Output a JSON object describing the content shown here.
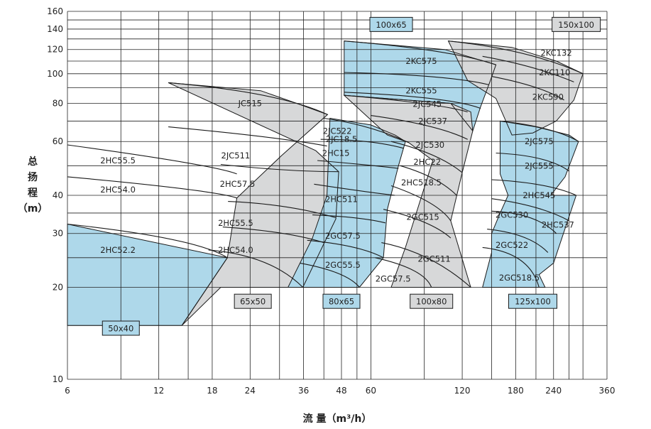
{
  "chart_data": {
    "type": "area",
    "xlabel": "流 量（m³/h）",
    "ylabel": [
      "总",
      "扬",
      "程",
      "（m）"
    ],
    "x_scale": "log",
    "y_scale": "log",
    "xlim": [
      6,
      360
    ],
    "ylim": [
      10,
      160
    ],
    "x_ticks": [
      6,
      12,
      18,
      24,
      36,
      48,
      60,
      120,
      180,
      240,
      360
    ],
    "y_ticks": [
      10,
      20,
      30,
      40,
      60,
      80,
      100,
      120,
      140,
      160
    ],
    "x_grid": [
      6,
      9,
      12,
      15,
      18,
      24,
      30,
      36,
      42,
      48,
      54,
      60,
      90,
      120,
      150,
      180,
      210,
      240,
      270,
      300,
      360
    ],
    "y_grid": [
      10,
      15,
      20,
      25,
      30,
      35,
      40,
      50,
      60,
      70,
      80,
      90,
      100,
      110,
      120,
      130,
      140,
      150,
      160
    ],
    "colors": {
      "blue": "#aed8ea",
      "gray": "#d7d8d9",
      "outline": "#1a1a1a",
      "grid": "#222222"
    },
    "regions": [
      {
        "size": "50x40",
        "fill": "blue",
        "polygon": [
          [
            6,
            15
          ],
          [
            14.3,
            15
          ],
          [
            20.2,
            25
          ],
          [
            6,
            32.2
          ]
        ],
        "curves": [
          {
            "x1": 6,
            "y1": 58.5,
            "x2": 18.5,
            "y2": 50.2,
            "end": [
              21.7,
              47
            ]
          },
          {
            "x1": 6,
            "y1": 46,
            "x2": 18.5,
            "y2": 41.5,
            "end": [
              21.7,
              39.2
            ]
          },
          {
            "x1": 6,
            "y1": 32.2,
            "x2": 16,
            "y2": 29,
            "end": [
              20.2,
              25
            ]
          }
        ],
        "models": [
          {
            "name": "2HC55.5",
            "x": 8.8,
            "y": 52
          },
          {
            "name": "2HC54.0",
            "x": 8.8,
            "y": 41.8
          },
          {
            "name": "2HC52.2",
            "x": 8.8,
            "y": 26.5
          }
        ]
      },
      {
        "size": "65x50",
        "fill": "gray",
        "polygon": [
          [
            12.9,
            93.5
          ],
          [
            26,
            88
          ],
          [
            33,
            81
          ],
          [
            43.2,
            73.5
          ],
          [
            30.5,
            54
          ],
          [
            21.7,
            39.2
          ],
          [
            20.2,
            25
          ],
          [
            14.3,
            15
          ],
          [
            19.2,
            20
          ],
          [
            35.8,
            20
          ],
          [
            46,
            33.5
          ],
          [
            47,
            47.8
          ],
          [
            39.5,
            56
          ]
        ],
        "curves": [
          {
            "x1": 12.9,
            "y1": 93.5,
            "x2": 30,
            "y2": 87,
            "end": [
              43.2,
              73.5
            ]
          },
          {
            "x1": 12.9,
            "y1": 67,
            "x2": 30,
            "y2": 62,
            "end": [
              43,
              58
            ]
          },
          {
            "x1": 19.2,
            "y1": 50.5,
            "x2": 32,
            "y2": 47.8,
            "end": [
              47,
              47.8
            ]
          },
          {
            "x1": 20.3,
            "y1": 38.2,
            "x2": 32,
            "y2": 37.5,
            "end": [
              46,
              33.8
            ]
          },
          {
            "x1": 19.5,
            "y1": 31.5,
            "x2": 32,
            "y2": 30.5,
            "end": [
              42,
              28
            ]
          },
          {
            "x1": 17.5,
            "y1": 26.5,
            "x2": 28,
            "y2": 25.5,
            "end": [
              35.8,
              20
            ]
          }
        ],
        "models": [
          {
            "name": "JC515",
            "x": 24,
            "y": 80
          },
          {
            "name": "2JC511",
            "x": 21.5,
            "y": 54
          },
          {
            "name": "2HC57.5",
            "x": 21.8,
            "y": 43.6
          },
          {
            "name": "2HC55.5",
            "x": 21.5,
            "y": 32.5
          },
          {
            "name": "2HC54.0",
            "x": 21.5,
            "y": 26.5
          }
        ]
      },
      {
        "size": "80x65",
        "fill": "blue",
        "polygon": [
          [
            44,
            71.5
          ],
          [
            60,
            68
          ],
          [
            72,
            63
          ],
          [
            78,
            60
          ],
          [
            74,
            50
          ],
          [
            68,
            36
          ],
          [
            66,
            25
          ],
          [
            55,
            20
          ],
          [
            32,
            20
          ],
          [
            38.5,
            29
          ],
          [
            43,
            40
          ]
        ],
        "curves": [
          {
            "x1": 42,
            "y1": 71.5,
            "x2": 60,
            "y2": 68,
            "end": [
              80,
              59.5
            ]
          },
          {
            "x1": 41,
            "y1": 61,
            "x2": 60,
            "y2": 61,
            "end": [
              77,
              57
            ]
          },
          {
            "x1": 40,
            "y1": 52,
            "x2": 57,
            "y2": 50.5,
            "end": [
              74,
              49
            ]
          },
          {
            "x1": 39,
            "y1": 43.5,
            "x2": 58,
            "y2": 41,
            "end": [
              72,
              40
            ]
          },
          {
            "x1": 38.5,
            "y1": 34.5,
            "x2": 56,
            "y2": 34,
            "end": [
              67,
              32.5
            ]
          },
          {
            "x1": 37,
            "y1": 28.5,
            "x2": 55,
            "y2": 27.5,
            "end": [
              66,
              25
            ]
          },
          {
            "x1": 35,
            "y1": 24,
            "x2": 50,
            "y2": 22.5,
            "end": [
              55,
              20
            ]
          }
        ],
        "models": [
          {
            "name": "2JC522",
            "x": 46.5,
            "y": 65
          },
          {
            "name": "2JC18.5",
            "x": 48,
            "y": 61
          },
          {
            "name": "2HC15",
            "x": 46,
            "y": 55
          },
          {
            "name": "2HC511",
            "x": 48,
            "y": 38.8
          },
          {
            "name": "2GC57.5",
            "x": 48.5,
            "y": 29.5
          },
          {
            "name": "2GC55.5",
            "x": 48.5,
            "y": 23.7
          }
        ]
      },
      {
        "size": "100x65",
        "fill": "blue",
        "polygon": [
          [
            49,
            128
          ],
          [
            105,
            120
          ],
          [
            155,
            107
          ],
          [
            148,
            94
          ],
          [
            138,
            78
          ],
          [
            130,
            65
          ],
          [
            110,
            80
          ],
          [
            49,
            85
          ]
        ],
        "curves": [
          {
            "x1": 49,
            "y1": 128,
            "x2": 110,
            "y2": 120,
            "end": [
              155,
              107
            ]
          },
          {
            "x1": 49,
            "y1": 101,
            "x2": 110,
            "y2": 99,
            "end": [
              147,
              92
            ]
          },
          {
            "x1": 49,
            "y1": 87,
            "x2": 110,
            "y2": 84,
            "end": [
              138,
              77
            ]
          }
        ],
        "models": [
          {
            "name": "2KC575",
            "x": 88,
            "y": 110
          },
          {
            "name": "2KC555",
            "x": 88,
            "y": 88
          }
        ]
      },
      {
        "size": "100x80",
        "fill": "gray",
        "polygon": [
          [
            49,
            85
          ],
          [
            110,
            80
          ],
          [
            128,
            75
          ],
          [
            130,
            65
          ],
          [
            120,
            47.5
          ],
          [
            110,
            33
          ],
          [
            128,
            20
          ],
          [
            70,
            20
          ],
          [
            78,
            27
          ],
          [
            96,
            52
          ],
          [
            80,
            59.5
          ],
          [
            68,
            63
          ]
        ],
        "curves": [
          {
            "x1": 49,
            "y1": 85,
            "x2": 100,
            "y2": 80,
            "end": [
              125,
              75
            ]
          },
          {
            "x1": 60,
            "y1": 73,
            "x2": 100,
            "y2": 68,
            "end": [
              125,
              61
            ]
          },
          {
            "x1": 70,
            "y1": 60,
            "x2": 100,
            "y2": 55,
            "end": [
              120,
              47.5
            ]
          },
          {
            "x1": 75,
            "y1": 50,
            "x2": 100,
            "y2": 46,
            "end": [
              115,
              40
            ]
          },
          {
            "x1": 70,
            "y1": 43,
            "x2": 100,
            "y2": 38,
            "end": [
              110,
              33
            ]
          },
          {
            "x1": 66,
            "y1": 36,
            "x2": 95,
            "y2": 33,
            "end": [
              110,
              29
            ]
          },
          {
            "x1": 65,
            "y1": 28,
            "x2": 95,
            "y2": 26,
            "end": [
              128,
              20
            ]
          },
          {
            "x1": 62,
            "y1": 25,
            "x2": 90,
            "y2": 23,
            "end": [
              95,
              20
            ]
          }
        ],
        "models": [
          {
            "name": "2JC545",
            "x": 92,
            "y": 79.5
          },
          {
            "name": "2JC537",
            "x": 96,
            "y": 70
          },
          {
            "name": "2JC530",
            "x": 94,
            "y": 58.5
          },
          {
            "name": "2HC22",
            "x": 92,
            "y": 51.5
          },
          {
            "name": "2HC518.5",
            "x": 88,
            "y": 44
          },
          {
            "name": "2GC515",
            "x": 89,
            "y": 34
          },
          {
            "name": "2GC511",
            "x": 97,
            "y": 24.8
          },
          {
            "name": "2GC57.5",
            "x": 71,
            "y": 21.3
          }
        ]
      },
      {
        "size": "150x100",
        "fill": "gray",
        "polygon": [
          [
            108,
            128
          ],
          [
            175,
            122
          ],
          [
            245,
            110
          ],
          [
            300,
            100
          ],
          [
            280,
            82
          ],
          [
            245,
            70
          ],
          [
            205,
            64
          ],
          [
            175,
            63
          ],
          [
            155,
            83
          ],
          [
            125,
            95
          ]
        ],
        "curves": [
          {
            "x1": 108,
            "y1": 128,
            "x2": 200,
            "y2": 120,
            "end": [
              300,
              100
            ]
          },
          {
            "x1": 140,
            "y1": 114,
            "x2": 210,
            "y2": 106,
            "end": [
              280,
              94
            ]
          },
          {
            "x1": 150,
            "y1": 98,
            "x2": 220,
            "y2": 91,
            "end": [
              260,
              82
            ]
          }
        ],
        "models": [
          {
            "name": "2KC132",
            "x": 245,
            "y": 117
          },
          {
            "name": "2KC110",
            "x": 242,
            "y": 101
          },
          {
            "name": "2KC590",
            "x": 230,
            "y": 84
          }
        ]
      },
      {
        "size": "125x100",
        "fill": "blue",
        "polygon": [
          [
            160,
            70
          ],
          [
            210,
            67
          ],
          [
            270,
            63
          ],
          [
            290,
            60
          ],
          [
            262,
            46
          ],
          [
            235,
            40
          ],
          [
            285,
            40
          ],
          [
            240,
            24
          ],
          [
            215,
            22
          ],
          [
            225,
            20
          ],
          [
            140,
            20
          ],
          [
            150,
            26
          ],
          [
            150,
            30
          ],
          [
            160,
            35
          ],
          [
            170,
            40
          ],
          [
            160,
            47
          ]
        ],
        "curves": [
          {
            "x1": 160,
            "y1": 70,
            "x2": 240,
            "y2": 67,
            "end": [
              290,
              60
            ]
          },
          {
            "x1": 155,
            "y1": 55,
            "x2": 230,
            "y2": 54,
            "end": [
              270,
              48
            ]
          },
          {
            "x1": 150,
            "y1": 45,
            "x2": 230,
            "y2": 44,
            "end": [
              285,
              40
            ]
          },
          {
            "x1": 150,
            "y1": 39,
            "x2": 220,
            "y2": 37,
            "end": [
              270,
              33
            ]
          },
          {
            "x1": 150,
            "y1": 35.5,
            "x2": 210,
            "y2": 35,
            "end": [
              245,
              30
            ]
          },
          {
            "x1": 145,
            "y1": 31,
            "x2": 200,
            "y2": 30,
            "end": [
              230,
              26
            ]
          },
          {
            "x1": 140,
            "y1": 27,
            "x2": 200,
            "y2": 26,
            "end": [
              215,
              20
            ]
          }
        ],
        "models": [
          {
            "name": "2JC575",
            "x": 215,
            "y": 60
          },
          {
            "name": "2JC555",
            "x": 215,
            "y": 50
          },
          {
            "name": "2HC545",
            "x": 215,
            "y": 40
          },
          {
            "name": "2GC530",
            "x": 175,
            "y": 34.5
          },
          {
            "name": "2HC537",
            "x": 248,
            "y": 32
          },
          {
            "name": "2GC522",
            "x": 175,
            "y": 27.5
          },
          {
            "name": "2GC518.5",
            "x": 185,
            "y": 21.5
          }
        ]
      }
    ],
    "size_labels": [
      {
        "text": "50x40",
        "x": 9,
        "y": 14.7
      },
      {
        "text": "65x50",
        "x": 24.5,
        "y": 18
      },
      {
        "text": "80x65",
        "x": 48,
        "y": 18
      },
      {
        "text": "100x80",
        "x": 95,
        "y": 18
      },
      {
        "text": "125x100",
        "x": 205,
        "y": 18
      },
      {
        "text": "100x65",
        "x": 70,
        "y": 145
      },
      {
        "text": "150x100",
        "x": 285,
        "y": 145
      }
    ]
  }
}
